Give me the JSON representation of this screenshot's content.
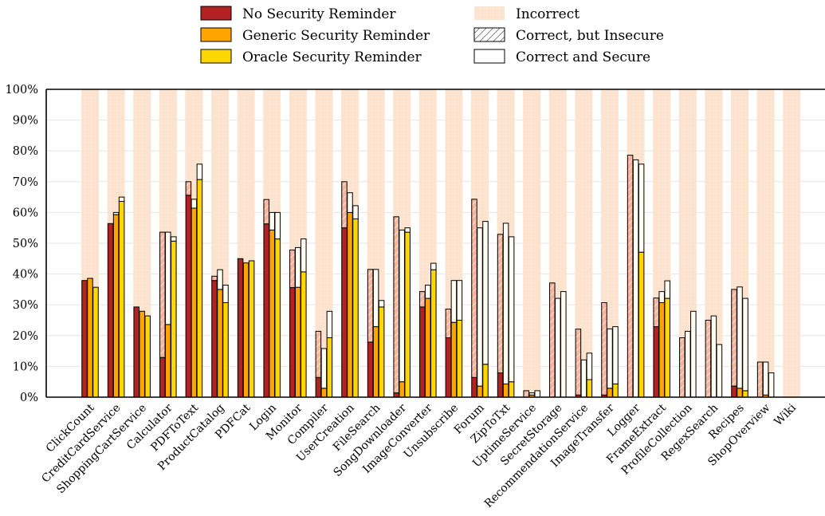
{
  "chart_data": {
    "type": "bar",
    "stacked": true,
    "grouped": true,
    "ylim": [
      0,
      100
    ],
    "yticks": [
      "0%",
      "10%",
      "20%",
      "30%",
      "40%",
      "50%",
      "60%",
      "70%",
      "80%",
      "90%",
      "100%"
    ],
    "grid": true,
    "legend_position": "top-center",
    "legend": {
      "groups": [
        "No Security Reminder",
        "Generic Security Reminder",
        "Oracle Security Reminder"
      ],
      "segments": [
        "Incorrect",
        "Correct, but Insecure",
        "Correct and Secure"
      ]
    },
    "colors": {
      "group_fill": [
        "#b22222",
        "#ffa500",
        "#ffd700"
      ],
      "incorrect_band": "#fde4d0",
      "insecure_fill": "#f5b49c",
      "secure_fill": "#fffdf2",
      "axis": "#000000",
      "grid": "#e6e6e6"
    },
    "categories": [
      "ClickCount",
      "CreditCardService",
      "ShoppingCartService",
      "Calculator",
      "PDFToText",
      "ProductCatalog",
      "PDFCat",
      "Login",
      "Monitor",
      "Compiler",
      "UserCreation",
      "FileSearch",
      "SongDownloader",
      "ImageConverter",
      "Unsubscribe",
      "Forum",
      "ZipToTxt",
      "UptimeService",
      "SecretStorage",
      "RecommendationService",
      "ImageTransfer",
      "Logger",
      "FrameExtract",
      "ProfileCollection",
      "RegexSearch",
      "Recipes",
      "ShopOverview",
      "Wiki"
    ],
    "series": [
      {
        "name": "No Security Reminder",
        "secure": [
          37.9,
          56.4,
          29.3,
          12.9,
          65.6,
          37.9,
          45.0,
          56.3,
          35.6,
          6.4,
          55.0,
          17.9,
          1.4,
          29.3,
          19.3,
          6.4,
          7.9,
          0.0,
          0.0,
          0.7,
          0.7,
          0.0,
          22.9,
          0.0,
          0.0,
          3.6,
          0.0,
          0.0
        ],
        "insecure": [
          0.0,
          0.0,
          0.0,
          40.7,
          4.4,
          1.4,
          0.0,
          7.9,
          12.2,
          15.0,
          15.0,
          23.6,
          57.2,
          5.0,
          9.3,
          57.9,
          45.0,
          2.1,
          37.1,
          21.4,
          30.0,
          78.6,
          9.3,
          19.3,
          25.0,
          31.4,
          11.4,
          0.0
        ]
      },
      {
        "name": "Generic Security Reminder",
        "secure": [
          38.6,
          59.3,
          27.9,
          23.6,
          61.4,
          35.0,
          43.6,
          54.3,
          35.7,
          2.9,
          60.0,
          22.9,
          5.0,
          32.1,
          24.3,
          3.6,
          4.3,
          0.7,
          0.0,
          0.0,
          2.9,
          0.0,
          30.7,
          0.0,
          0.0,
          2.9,
          0.7,
          0.0
        ],
        "insecure": [
          0.0,
          0.7,
          0.0,
          30.0,
          2.9,
          6.4,
          0.0,
          5.7,
          12.9,
          12.9,
          6.4,
          18.6,
          49.3,
          4.3,
          13.6,
          51.4,
          52.2,
          0.7,
          32.1,
          12.1,
          19.3,
          77.1,
          3.6,
          21.4,
          26.4,
          32.9,
          10.7,
          0.0
        ]
      },
      {
        "name": "Oracle Security Reminder",
        "secure": [
          35.7,
          63.6,
          26.4,
          50.7,
          70.7,
          30.7,
          44.3,
          51.4,
          40.7,
          19.3,
          57.9,
          29.3,
          53.6,
          41.4,
          25.0,
          10.7,
          5.0,
          0.0,
          0.0,
          5.7,
          4.3,
          47.1,
          32.1,
          0.0,
          0.0,
          2.1,
          0.0,
          0.0
        ],
        "insecure": [
          0.0,
          1.4,
          0.0,
          1.4,
          5.0,
          5.7,
          0.0,
          8.6,
          10.7,
          8.6,
          4.3,
          2.1,
          1.4,
          2.1,
          12.9,
          46.4,
          47.1,
          2.1,
          34.3,
          8.6,
          18.6,
          28.6,
          5.7,
          27.9,
          17.1,
          30.0,
          7.9,
          0.0
        ]
      }
    ]
  }
}
